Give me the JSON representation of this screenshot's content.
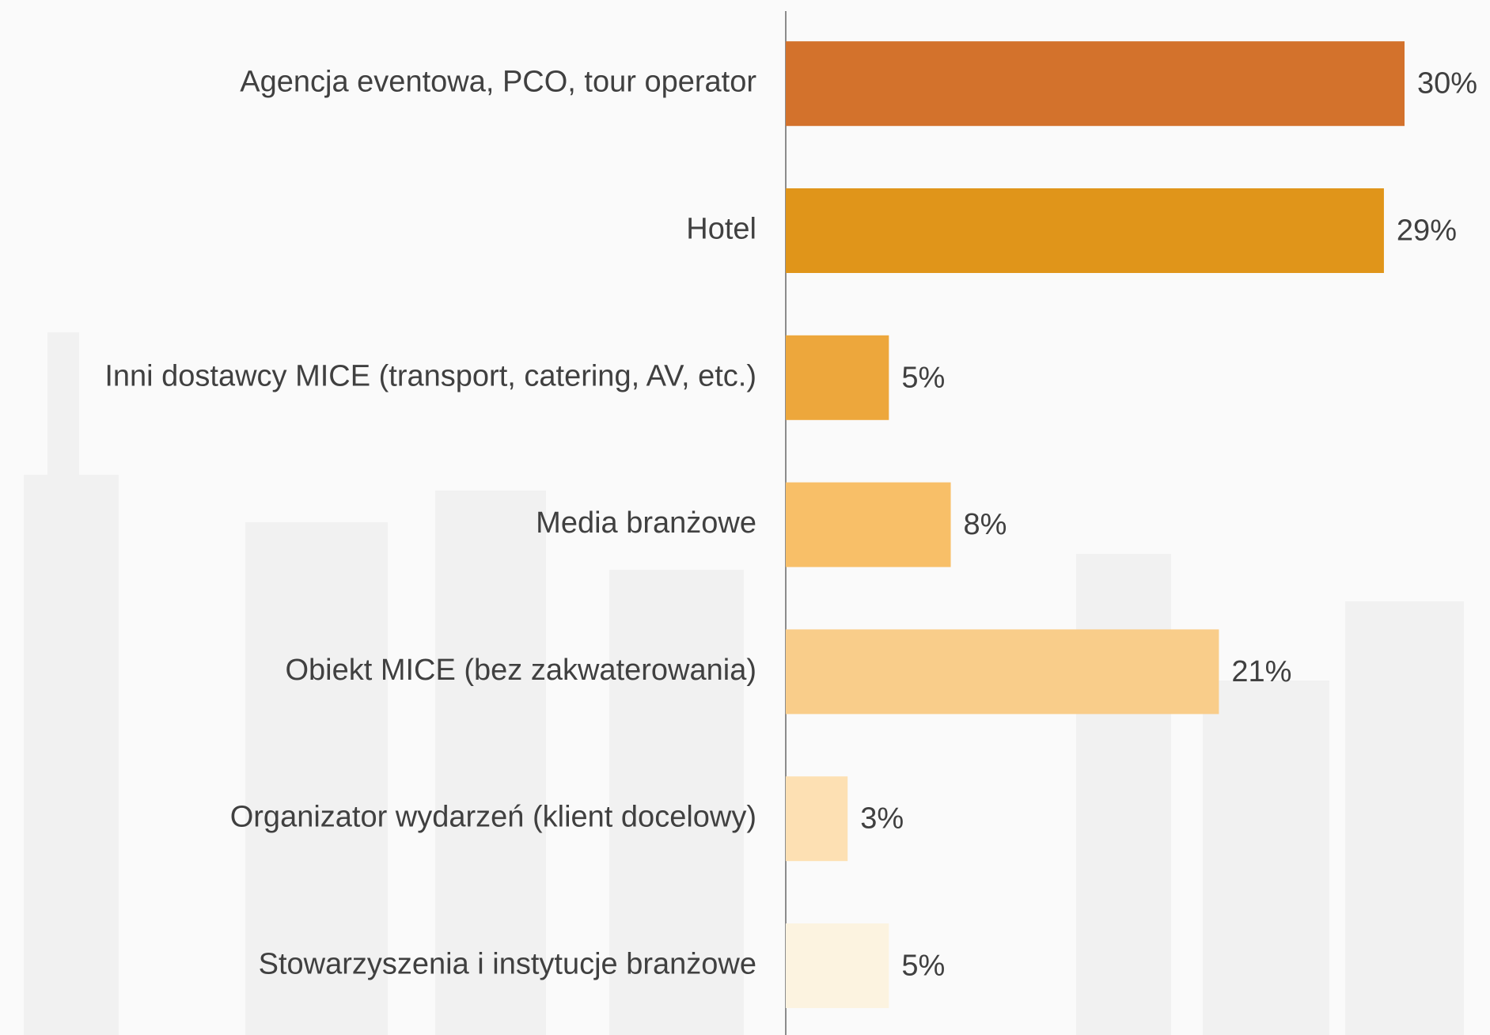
{
  "chart_data": {
    "type": "bar",
    "orientation": "horizontal",
    "categories": [
      "Agencja eventowa, PCO, tour operator",
      "Hotel",
      "Inni dostawcy MICE (transport, catering, AV, etc.)",
      "Media branżowe",
      "Obiekt MICE (bez zakwaterowania)",
      "Organizator wydarzeń (klient docelowy)",
      "Stowarzyszenia i instytucje branżowe"
    ],
    "values": [
      30,
      29,
      5,
      8,
      21,
      3,
      5
    ],
    "value_labels": [
      "30%",
      "29%",
      "5%",
      "8%",
      "21%",
      "3%",
      "5%"
    ],
    "colors": [
      "#d3722c",
      "#e0951a",
      "#eda73c",
      "#f8bf68",
      "#f9cd8a",
      "#fde0b3",
      "#fcf3e0"
    ]
  }
}
